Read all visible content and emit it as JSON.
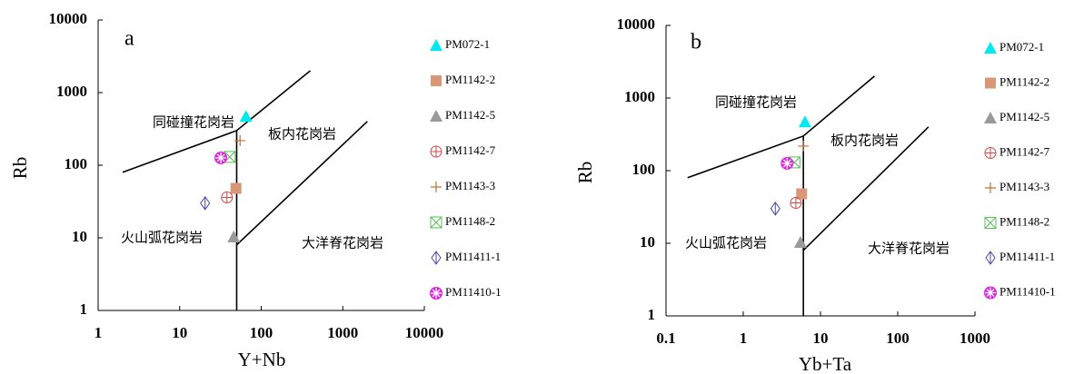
{
  "chart_data": [
    {
      "type": "scatter",
      "title": "a",
      "x_label": "Y+Nb",
      "y_label": "Rb",
      "xscale": "log",
      "yscale": "log",
      "xlim": [
        1,
        10000
      ],
      "xticks": [
        1,
        10,
        100,
        1000,
        10000
      ],
      "ylim": [
        1,
        10000
      ],
      "yticks": [
        1,
        10,
        100,
        1000,
        10000
      ],
      "fields": [
        "同碰撞花岗岩",
        "板内花岗岩",
        "火山弧花岗岩",
        "大洋脊花岗岩"
      ],
      "boundaries": [
        {
          "x": [
            2,
            50,
            400
          ],
          "y": [
            80,
            300,
            2000
          ]
        },
        {
          "x": [
            50,
            50
          ],
          "y": [
            300,
            1
          ]
        },
        {
          "x": [
            50,
            2000
          ],
          "y": [
            8,
            400
          ]
        }
      ],
      "series": [
        {
          "name": "PM072-1",
          "color": "#00e8f0",
          "marker": "triangle",
          "x": [
            65
          ],
          "values": [
            470
          ]
        },
        {
          "name": "PM1142-2",
          "color": "#d9977a",
          "marker": "square",
          "x": [
            49
          ],
          "values": [
            48
          ]
        },
        {
          "name": "PM1142-5",
          "color": "#9a9a9a",
          "marker": "triangle",
          "x": [
            46
          ],
          "values": [
            10.3
          ]
        },
        {
          "name": "PM1142-7",
          "color": "#d04848",
          "marker": "circle-plus",
          "x": [
            38
          ],
          "values": [
            36
          ]
        },
        {
          "name": "PM1143-3",
          "color": "#c0703a",
          "marker": "plus",
          "x": [
            55
          ],
          "values": [
            218
          ]
        },
        {
          "name": "PM1148-2",
          "color": "#55c055",
          "marker": "square-x",
          "x": [
            41
          ],
          "values": [
            130
          ]
        },
        {
          "name": "PM11411-1",
          "color": "#4848a8",
          "marker": "diamond",
          "x": [
            20.5
          ],
          "values": [
            30
          ]
        },
        {
          "name": "PM11410-1",
          "color": "#e020e0",
          "marker": "flower",
          "x": [
            32
          ],
          "values": [
            126
          ]
        }
      ]
    },
    {
      "type": "scatter",
      "title": "b",
      "x_label": "Yb+Ta",
      "y_label": "Rb",
      "xscale": "log",
      "yscale": "log",
      "xlim": [
        0.1,
        1000
      ],
      "xticks": [
        0.1,
        1,
        10,
        100,
        1000
      ],
      "ylim": [
        1,
        10000
      ],
      "yticks": [
        1,
        10,
        100,
        1000,
        10000
      ],
      "fields": [
        "同碰撞花岗岩",
        "板内花岗岩",
        "火山弧花岗岩",
        "大洋脊花岗岩"
      ],
      "boundaries": [
        {
          "x": [
            0.19,
            6,
            50
          ],
          "y": [
            80,
            300,
            2000
          ]
        },
        {
          "x": [
            6,
            6
          ],
          "y": [
            300,
            1
          ]
        },
        {
          "x": [
            6,
            250
          ],
          "y": [
            8,
            400
          ]
        }
      ],
      "series": [
        {
          "name": "PM072-1",
          "color": "#00e8f0",
          "marker": "triangle",
          "x": [
            6.3
          ],
          "values": [
            470
          ]
        },
        {
          "name": "PM1142-2",
          "color": "#d9977a",
          "marker": "square",
          "x": [
            5.7
          ],
          "values": [
            48
          ]
        },
        {
          "name": "PM1142-5",
          "color": "#9a9a9a",
          "marker": "triangle",
          "x": [
            5.5
          ],
          "values": [
            10.3
          ]
        },
        {
          "name": "PM1142-7",
          "color": "#d04848",
          "marker": "circle-plus",
          "x": [
            4.8
          ],
          "values": [
            36
          ]
        },
        {
          "name": "PM1143-3",
          "color": "#c0703a",
          "marker": "plus",
          "x": [
            6
          ],
          "values": [
            218
          ]
        },
        {
          "name": "PM1148-2",
          "color": "#55c055",
          "marker": "square-x",
          "x": [
            4.6
          ],
          "values": [
            130
          ]
        },
        {
          "name": "PM11411-1",
          "color": "#4848a8",
          "marker": "diamond",
          "x": [
            2.6
          ],
          "values": [
            30
          ]
        },
        {
          "name": "PM11410-1",
          "color": "#e020e0",
          "marker": "flower",
          "x": [
            3.7
          ],
          "values": [
            126
          ]
        }
      ]
    }
  ]
}
